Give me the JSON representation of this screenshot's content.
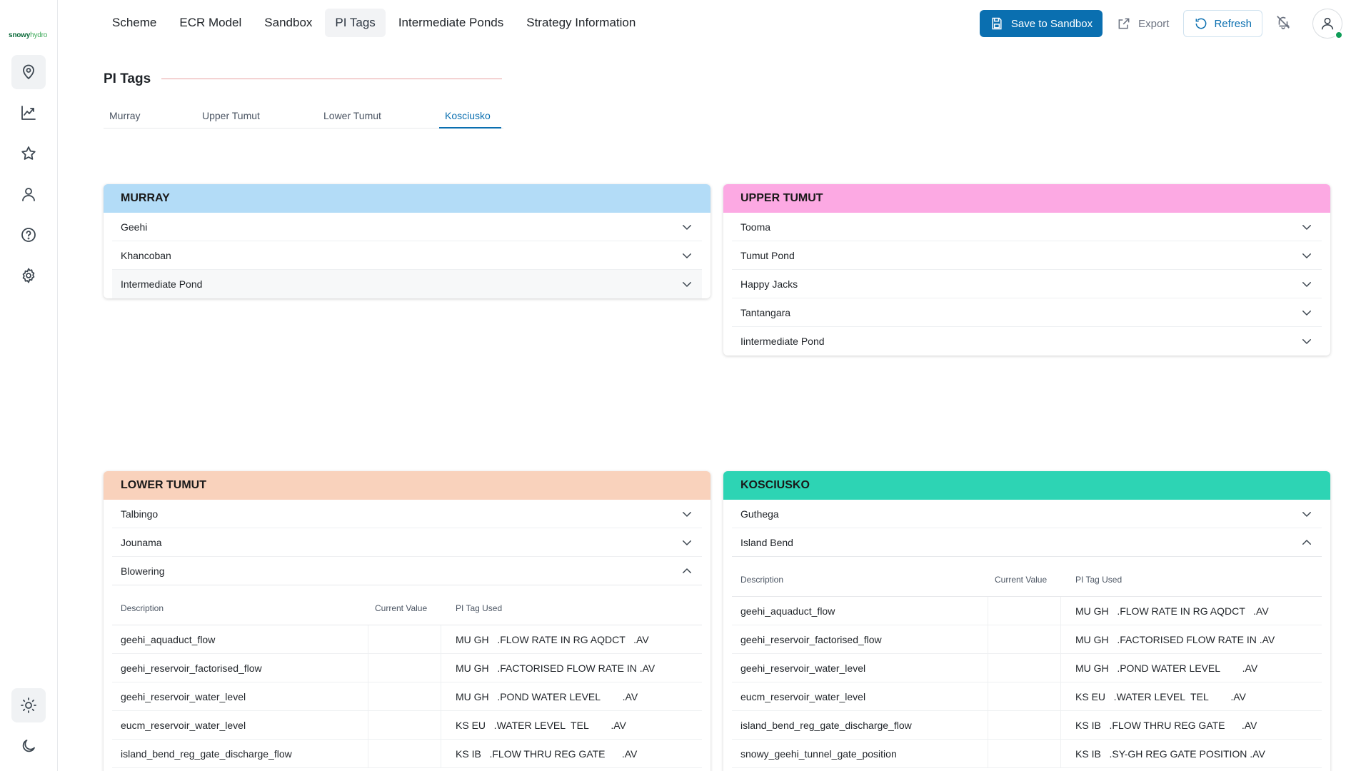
{
  "app": {
    "logo_primary": "snowy",
    "logo_secondary": "hydro"
  },
  "nav": {
    "items": [
      "Scheme",
      "ECR Model",
      "Sandbox",
      "PI Tags",
      "Intermediate Ponds",
      "Strategy Information"
    ],
    "active": "PI Tags"
  },
  "actions": {
    "save": "Save to Sandbox",
    "export": "Export",
    "refresh": "Refresh"
  },
  "colors": {
    "primary": "#0a6fb0",
    "murray": "#b3dcf7",
    "upper_tumut": "#fca9e3",
    "lower_tumut": "#f9d2bc",
    "kosciusko": "#2dd4b4",
    "status_online": "#0f9d58"
  },
  "page": {
    "title": "PI Tags",
    "subtabs": [
      "Murray",
      "Upper Tumut",
      "Lower Tumut",
      "Kosciusko"
    ],
    "active_subtab": "Kosciusko"
  },
  "cards": {
    "murray": {
      "title": "MURRAY",
      "rows": [
        "Geehi",
        "Khancoban",
        "Intermediate Pond"
      ]
    },
    "upper_tumut": {
      "title": "UPPER TUMUT",
      "rows": [
        "Tooma",
        "Tumut Pond",
        "Happy Jacks",
        "Tantangara",
        "Iintermediate Pond"
      ]
    },
    "lower_tumut": {
      "title": "LOWER TUMUT",
      "rows": [
        "Talbingo",
        "Jounama",
        "Blowering"
      ],
      "expanded": "Blowering",
      "table": {
        "headers": [
          "Description",
          "Current Value",
          "PI Tag Used"
        ],
        "rows": [
          [
            "geehi_aquaduct_flow",
            "",
            "MU GH   .FLOW RATE IN RG AQDCT   .AV"
          ],
          [
            "geehi_reservoir_factorised_flow",
            "",
            "MU GH   .FACTORISED FLOW RATE IN .AV"
          ],
          [
            "geehi_reservoir_water_level",
            "",
            "MU GH   .POND WATER LEVEL        .AV"
          ],
          [
            "eucm_reservoir_water_level",
            "",
            "KS EU   .WATER LEVEL  TEL        .AV"
          ],
          [
            "island_bend_reg_gate_discharge_flow",
            "",
            "KS IB   .FLOW THRU REG GATE      .AV"
          ]
        ]
      }
    },
    "kosciusko": {
      "title": "KOSCIUSKO",
      "rows": [
        "Guthega",
        "Island Bend"
      ],
      "expanded": "Island Bend",
      "table": {
        "headers": [
          "Description",
          "Current Value",
          "PI Tag Used"
        ],
        "rows": [
          [
            "geehi_aquaduct_flow",
            "",
            "MU GH   .FLOW RATE IN RG AQDCT   .AV"
          ],
          [
            "geehi_reservoir_factorised_flow",
            "",
            "MU GH   .FACTORISED FLOW RATE IN .AV"
          ],
          [
            "geehi_reservoir_water_level",
            "",
            "MU GH   .POND WATER LEVEL        .AV"
          ],
          [
            "eucm_reservoir_water_level",
            "",
            "KS EU   .WATER LEVEL  TEL        .AV"
          ],
          [
            "island_bend_reg_gate_discharge_flow",
            "",
            "KS IB   .FLOW THRU REG GATE      .AV"
          ],
          [
            "snowy_geehi_tunnel_gate_position",
            "",
            "KS IB   .SY-GH REG GATE POSITION .AV"
          ]
        ]
      }
    }
  }
}
